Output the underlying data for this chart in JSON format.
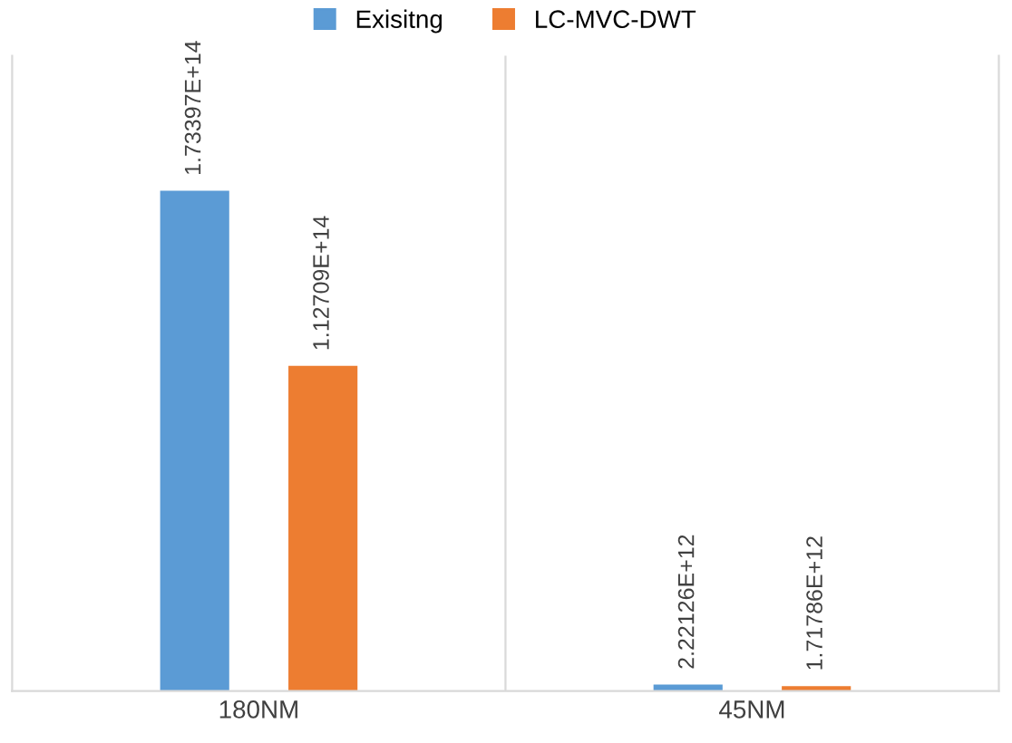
{
  "chart_data": {
    "type": "bar",
    "categories": [
      "180NM",
      "45NM"
    ],
    "series": [
      {
        "name": "Exisitng",
        "color": "#5b9bd5",
        "values": [
          173397000000000.0,
          2221260000000.0
        ],
        "value_labels": [
          "1.73397E+14",
          "2.22126E+12"
        ]
      },
      {
        "name": "LC-MVC-DWT",
        "color": "#ed7d31",
        "values": [
          112709000000000.0,
          1717860000000.0
        ],
        "value_labels": [
          "1.12709E+14",
          "1.71786E+12"
        ]
      }
    ],
    "legend": "top",
    "grid": false
  }
}
